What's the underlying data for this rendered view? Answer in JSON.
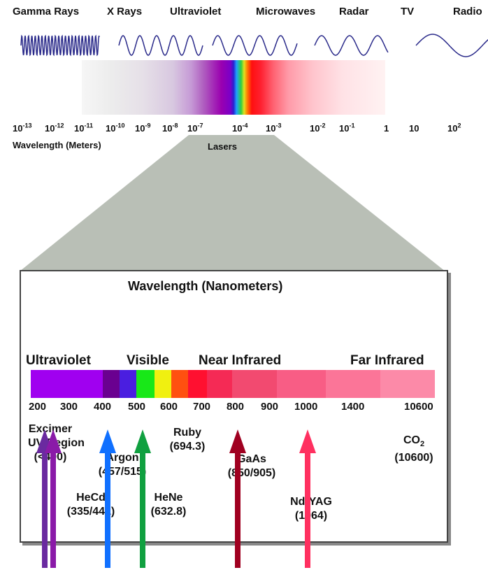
{
  "em_spectrum": {
    "bands": [
      "Gamma Rays",
      "X Rays",
      "Ultraviolet",
      "Microwaves",
      "Radar",
      "TV",
      "Radio"
    ],
    "ticks": [
      {
        "base": "10",
        "exp": "-13"
      },
      {
        "base": "10",
        "exp": "-12"
      },
      {
        "base": "10",
        "exp": "-11"
      },
      {
        "base": "10",
        "exp": "-10"
      },
      {
        "base": "10",
        "exp": "-9"
      },
      {
        "base": "10",
        "exp": "-8"
      },
      {
        "base": "10",
        "exp": "-7"
      },
      {
        "base": "10",
        "exp": "-4"
      },
      {
        "base": "10",
        "exp": "-3"
      },
      {
        "base": "10",
        "exp": "-2"
      },
      {
        "base": "10",
        "exp": "-1"
      },
      {
        "base": "1",
        "exp": ""
      },
      {
        "base": "10",
        "exp": ""
      },
      {
        "base": "10",
        "exp": "2"
      }
    ],
    "axis_label": "Wavelength (Meters)",
    "lasers_label": "Lasers"
  },
  "detail": {
    "title": "Wavelength (Nanometers)",
    "regions": [
      "Ultraviolet",
      "Visible",
      "Near Infrared",
      "Far Infrared"
    ],
    "nm_ticks": [
      "200",
      "300",
      "400",
      "500",
      "600",
      "700",
      "800",
      "900",
      "1000",
      "1400",
      "10600"
    ],
    "colors": [
      "#a000f0",
      "#6a0090",
      "#4a1ee0",
      "#18e818",
      "#f0f010",
      "#ff5010",
      "#ff1030",
      "#f52a55",
      "#f24a70",
      "#f85d85",
      "#fb7598",
      "#fc8aa8"
    ],
    "lasers": [
      {
        "name": "Excimer",
        "line2": "UV Region",
        "value": "(<400)"
      },
      {
        "name": "Argon",
        "line2": "",
        "value": "(457/515)"
      },
      {
        "name": "HeCd",
        "line2": "",
        "value": "(335/441)"
      },
      {
        "name": "Ruby",
        "line2": "",
        "value": "(694.3)"
      },
      {
        "name": "HeNe",
        "line2": "",
        "value": "(632.8)"
      },
      {
        "name": "GaAs",
        "line2": "",
        "value": "(850/905)"
      },
      {
        "name": "Nd:YAG",
        "line2": "",
        "value": "(1064)"
      },
      {
        "name": "CO",
        "sub": "2",
        "value": "(10600)"
      }
    ],
    "arrow_colors": [
      "#6a2aa0",
      "#8a1aa8",
      "#1070ff",
      "#10a040",
      "#a00020",
      "#ff3060"
    ]
  }
}
